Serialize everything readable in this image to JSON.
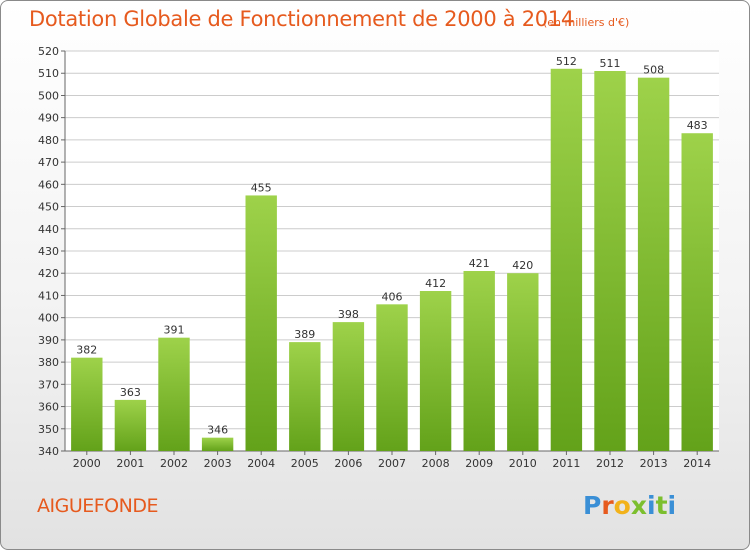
{
  "header": {
    "title": "Dotation Globale de Fonctionnement de 2000 à 2014",
    "subtitle": "(en milliers d'€)"
  },
  "footer": {
    "commune": "AIGUEFONDE",
    "logo_text": "Proxiti",
    "logo_colors": [
      "#3a8fd6",
      "#e65a1e",
      "#f2b21b",
      "#7cbf2e",
      "#3a8fd6",
      "#7cbf2e",
      "#3a8fd6"
    ]
  },
  "colors": {
    "bar_light": "#9ed24a",
    "bar_dark": "#63a21a",
    "grid": "#cccccc",
    "title": "#e65a1e"
  },
  "chart_data": {
    "type": "bar",
    "title": "Dotation Globale de Fonctionnement de 2000 à 2014",
    "subtitle": "(en milliers d'€)",
    "xlabel": "",
    "ylabel": "",
    "categories": [
      "2000",
      "2001",
      "2002",
      "2003",
      "2004",
      "2005",
      "2006",
      "2007",
      "2008",
      "2009",
      "2010",
      "2011",
      "2012",
      "2013",
      "2014"
    ],
    "values": [
      382,
      363,
      391,
      346,
      455,
      389,
      398,
      406,
      412,
      421,
      420,
      512,
      511,
      508,
      483
    ],
    "ylim": [
      340,
      520
    ],
    "ytick_step": 10,
    "grid": true,
    "legend": "none"
  }
}
